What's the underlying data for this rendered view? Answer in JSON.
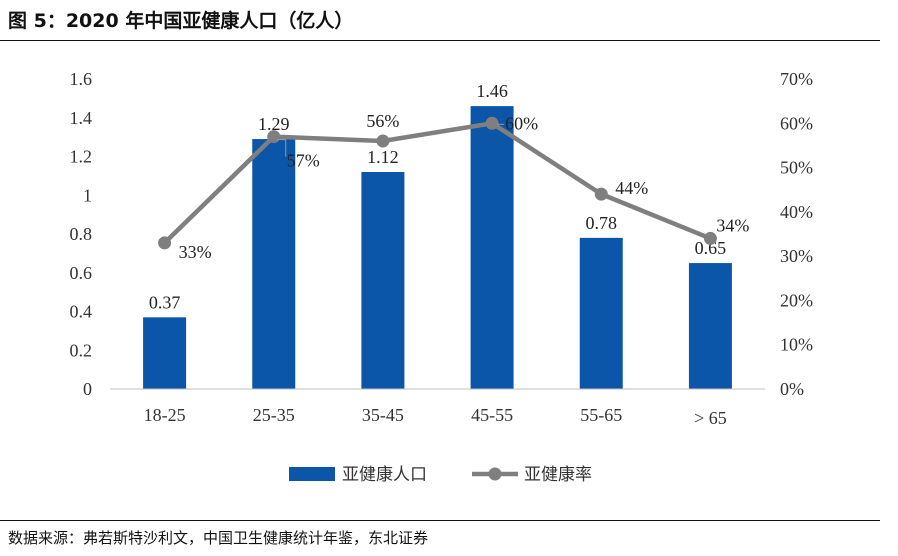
{
  "figure": {
    "title": "图 5：2020 年中国亚健康人口（亿人）",
    "source": "数据来源：弗若斯特沙利文，中国卫生健康统计年鉴，东北证券"
  },
  "chart_data": {
    "type": "bar",
    "categories": [
      "18-25",
      "25-35",
      "35-45",
      "45-55",
      "55-65",
      "> 65"
    ],
    "series": [
      {
        "name": "亚健康人口",
        "type": "bar",
        "axis": "left",
        "color": "#0B56A8",
        "values": [
          0.37,
          1.29,
          1.12,
          1.46,
          0.78,
          0.65
        ],
        "labels": [
          "0.37",
          "1.29",
          "1.12",
          "1.46",
          "0.78",
          "0.65"
        ]
      },
      {
        "name": "亚健康率",
        "type": "line",
        "axis": "right",
        "color": "#7F7F7F",
        "values": [
          33,
          57,
          56,
          60,
          44,
          34
        ],
        "labels": [
          "33%",
          "57%",
          "56%",
          "60%",
          "44%",
          "34%"
        ]
      }
    ],
    "yleft": {
      "ylim": [
        0,
        1.6
      ],
      "ticks": [
        "0",
        "0.2",
        "0.4",
        "0.6",
        "0.8",
        "1",
        "1.2",
        "1.4",
        "1.6"
      ]
    },
    "yright": {
      "ylim": [
        0,
        70
      ],
      "ticks": [
        "0%",
        "10%",
        "20%",
        "30%",
        "40%",
        "50%",
        "60%",
        "70%"
      ]
    },
    "legend": {
      "position": "bottom"
    },
    "grid": false
  }
}
